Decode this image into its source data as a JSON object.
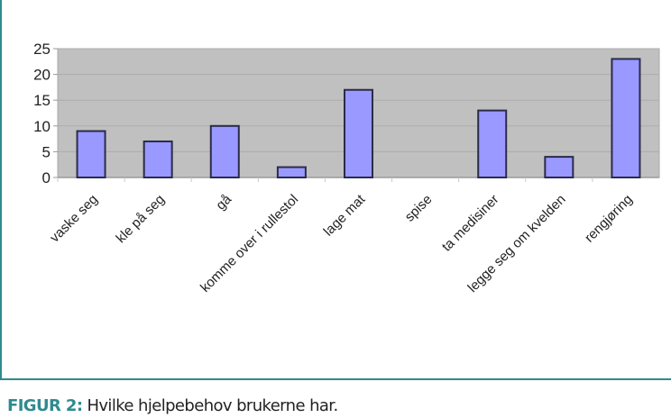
{
  "figure": {
    "label": "FIGUR 2:",
    "caption": "Hvilke hjelpebehov brukerne har.",
    "accent_color": "#2f8a8f"
  },
  "chart_data": {
    "type": "bar",
    "title": "",
    "xlabel": "",
    "ylabel": "",
    "categories": [
      "vaske seg",
      "kle på seg",
      "gå",
      "komme over i rullestol",
      "lage mat",
      "spise",
      "ta medisiner",
      "legge seg om kvelden",
      "rengjøring"
    ],
    "values": [
      9,
      7,
      10,
      2,
      17,
      0,
      13,
      4,
      23
    ],
    "ylim": [
      0,
      25
    ],
    "yticks": [
      0,
      5,
      10,
      15,
      20,
      25
    ],
    "grid": true,
    "legend": "none",
    "bar_color": "#9999ff",
    "bar_edge_color": "#2b2b4a",
    "plot_bg": "#c0c0c0"
  }
}
